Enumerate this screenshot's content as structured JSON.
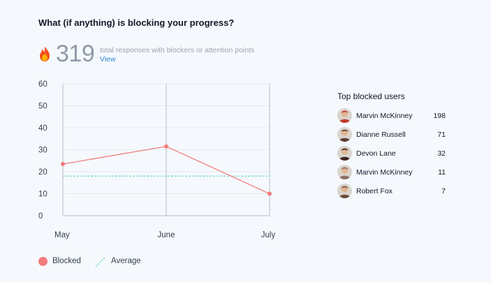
{
  "header": {
    "title": "What (if anything) is blocking your progress?"
  },
  "summary": {
    "count": "319",
    "text": "total responses with blockers or attention points",
    "link": "View",
    "icon": "fire-icon"
  },
  "legend": {
    "blocked_label": "Blocked",
    "average_label": "Average"
  },
  "colors": {
    "blocked": "#f47c7c",
    "average": "#4fd1b5",
    "grid": "#e7ebf0",
    "axis": "#b6bdc6"
  },
  "top_users": {
    "title": "Top blocked users",
    "items": [
      {
        "name": "Marvin McKinney",
        "count": "198",
        "avatar_color": "#c0392b"
      },
      {
        "name": "Dianne Russell",
        "count": "71",
        "avatar_color": "#5d4037"
      },
      {
        "name": "Devon Lane",
        "count": "32",
        "avatar_color": "#3e2723"
      },
      {
        "name": "Marvin McKinney",
        "count": "11",
        "avatar_color": "#8d6e63"
      },
      {
        "name": "Robert Fox",
        "count": "7",
        "avatar_color": "#6d4c41"
      }
    ]
  },
  "chart_data": {
    "type": "line",
    "categories": [
      "May",
      "June",
      "July"
    ],
    "series": [
      {
        "name": "Blocked",
        "values": [
          23.5,
          31.5,
          10
        ]
      }
    ],
    "average": 18,
    "ylim": [
      0,
      60
    ],
    "yticks": [
      0,
      10,
      20,
      30,
      40,
      50,
      60
    ],
    "grid": true,
    "legend_position": "bottom-left"
  }
}
